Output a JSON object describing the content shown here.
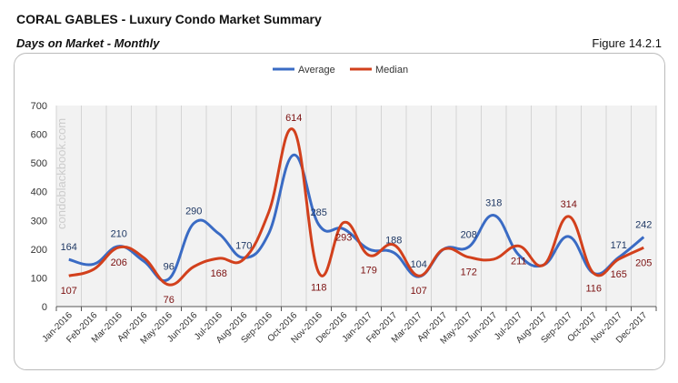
{
  "header": {
    "title": "CORAL GABLES - Luxury Condo Market Summary",
    "subtitle": "Days on Market - Monthly",
    "figure": "Figure 14.2.1"
  },
  "watermark": "condoblackbook.com",
  "chart_data": {
    "type": "line",
    "smooth": true,
    "grid": "vertical",
    "legend": "top-center",
    "categories": [
      "Jan-2016",
      "Feb-2016",
      "Mar-2016",
      "Apr-2016",
      "May-2016",
      "Jun-2016",
      "Jul-2016",
      "Aug-2016",
      "Sep-2016",
      "Oct-2016",
      "Nov-2016",
      "Dec-2016",
      "Jan-2017",
      "Feb-2017",
      "Mar-2017",
      "Apr-2017",
      "May-2017",
      "Jun-2017",
      "Jul-2017",
      "Aug-2017",
      "Sep-2017",
      "Oct-2017",
      "Nov-2017",
      "Dec-2017"
    ],
    "ylim": [
      0,
      700
    ],
    "yticks": [
      0,
      100,
      200,
      300,
      400,
      500,
      600,
      700
    ],
    "series": [
      {
        "name": "Average",
        "color": "#3a6bc4",
        "label_color": "#1f3864",
        "values": [
          164,
          148,
          210,
          158,
          96,
          290,
          254,
          170,
          255,
          528,
          285,
          270,
          200,
          188,
          104,
          200,
          208,
          318,
          180,
          145,
          244,
          116,
          171,
          242
        ],
        "labels": [
          164,
          null,
          210,
          null,
          96,
          290,
          null,
          170,
          null,
          null,
          285,
          null,
          null,
          188,
          104,
          null,
          208,
          318,
          null,
          null,
          null,
          null,
          171,
          242
        ]
      },
      {
        "name": "Median",
        "color": "#d2401c",
        "label_color": "#7b1010",
        "values": [
          107,
          130,
          206,
          170,
          76,
          139,
          168,
          165,
          329,
          614,
          118,
          293,
          179,
          215,
          107,
          200,
          172,
          165,
          211,
          145,
          314,
          116,
          165,
          205
        ],
        "labels": [
          107,
          null,
          206,
          null,
          76,
          null,
          168,
          null,
          null,
          614,
          118,
          293,
          179,
          null,
          107,
          null,
          172,
          null,
          211,
          null,
          314,
          116,
          165,
          205
        ]
      }
    ]
  }
}
